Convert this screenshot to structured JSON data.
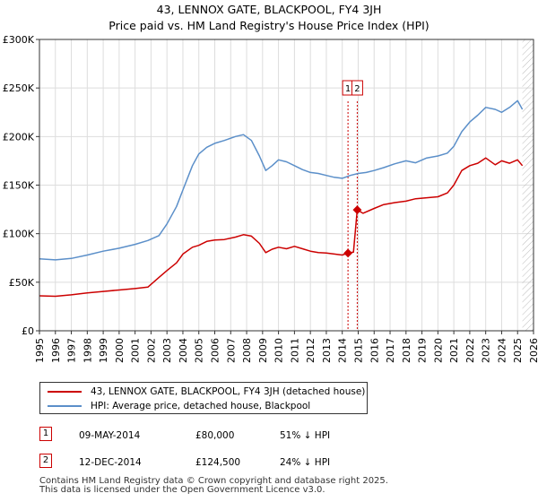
{
  "title_line1": "43, LENNOX GATE, BLACKPOOL, FY4 3JH",
  "title_line2": "Price paid vs. HM Land Registry's House Price Index (HPI)",
  "colors": {
    "property": "#cc0000",
    "hpi": "#5b8fc9",
    "vline": "#cc0000",
    "grid": "#dddddd",
    "future_hatch": "#bbbbbb"
  },
  "chart_data": {
    "type": "line",
    "xlim": [
      1995.0,
      2026.0
    ],
    "ylim": [
      0,
      300000
    ],
    "y_ticks": [
      0,
      50000,
      100000,
      150000,
      200000,
      250000,
      300000
    ],
    "y_tick_labels": [
      "£0",
      "£50K",
      "£100K",
      "£150K",
      "£200K",
      "£250K",
      "£300K"
    ],
    "x_ticks": [
      1995,
      1996,
      1997,
      1998,
      1999,
      2000,
      2001,
      2002,
      2003,
      2004,
      2005,
      2006,
      2007,
      2008,
      2009,
      2010,
      2011,
      2012,
      2013,
      2014,
      2015,
      2016,
      2017,
      2018,
      2019,
      2020,
      2021,
      2022,
      2023,
      2024,
      2025,
      2026
    ],
    "x_tick_labels": [
      "1995",
      "1996",
      "1997",
      "1998",
      "1999",
      "2000",
      "2001",
      "2002",
      "2003",
      "2004",
      "2005",
      "2006",
      "2007",
      "2008",
      "2009",
      "2010",
      "2011",
      "2012",
      "2013",
      "2014",
      "2015",
      "2016",
      "2017",
      "2018",
      "2019",
      "2020",
      "2021",
      "2022",
      "2023",
      "2024",
      "2025",
      "2026"
    ],
    "future_start": 2025.3,
    "series": [
      {
        "name": "43, LENNOX GATE, BLACKPOOL, FY4 3JH (detached house)",
        "color": "#cc0000",
        "x": [
          1995.0,
          1996.0,
          1997.0,
          1998.0,
          1999.0,
          2000.0,
          2001.0,
          2001.8,
          2002.5,
          2003.0,
          2003.6,
          2004.0,
          2004.6,
          2005.0,
          2005.5,
          2006.0,
          2006.6,
          2007.3,
          2007.8,
          2008.3,
          2008.8,
          2009.2,
          2009.6,
          2010.0,
          2010.5,
          2011.0,
          2011.5,
          2012.0,
          2012.5,
          2013.0,
          2013.5,
          2014.0,
          2014.36,
          2014.7,
          2014.94,
          2015.3,
          2016.0,
          2016.6,
          2017.3,
          2018.0,
          2018.6,
          2019.3,
          2020.0,
          2020.6,
          2021.0,
          2021.5,
          2022.0,
          2022.5,
          2023.0,
          2023.6,
          2024.0,
          2024.5,
          2025.0,
          2025.3
        ],
        "values": [
          36000,
          35500,
          37000,
          39000,
          40500,
          42000,
          43500,
          45000,
          55000,
          62000,
          70000,
          79000,
          86000,
          88000,
          92000,
          93500,
          94000,
          96500,
          99000,
          97500,
          90000,
          80500,
          84000,
          86000,
          84500,
          87000,
          84500,
          82000,
          80500,
          80000,
          79000,
          78000,
          80000,
          81000,
          124500,
          121000,
          126000,
          130000,
          132000,
          133500,
          136000,
          137000,
          138000,
          142000,
          150000,
          165000,
          170000,
          172500,
          178000,
          171000,
          175000,
          172500,
          176000,
          170000
        ]
      },
      {
        "name": "HPI: Average price, detached house, Blackpool",
        "color": "#5b8fc9",
        "x": [
          1995.0,
          1996.0,
          1997.0,
          1998.0,
          1999.0,
          2000.0,
          2001.0,
          2001.8,
          2002.5,
          2003.0,
          2003.6,
          2004.0,
          2004.6,
          2005.0,
          2005.5,
          2006.0,
          2006.6,
          2007.3,
          2007.8,
          2008.3,
          2008.8,
          2009.2,
          2009.6,
          2010.0,
          2010.5,
          2011.0,
          2011.5,
          2012.0,
          2012.5,
          2013.0,
          2013.5,
          2014.0,
          2014.5,
          2015.0,
          2015.5,
          2016.0,
          2016.6,
          2017.3,
          2018.0,
          2018.6,
          2019.3,
          2020.0,
          2020.6,
          2021.0,
          2021.5,
          2022.0,
          2022.5,
          2023.0,
          2023.6,
          2024.0,
          2024.5,
          2025.0,
          2025.3
        ],
        "values": [
          74000,
          73000,
          74500,
          78000,
          82000,
          85000,
          89000,
          93000,
          98000,
          110000,
          128000,
          145000,
          170000,
          182000,
          189000,
          193000,
          196000,
          200000,
          202000,
          196000,
          180000,
          165000,
          170000,
          176000,
          174000,
          170000,
          166000,
          163000,
          162000,
          160000,
          158000,
          157000,
          160000,
          162000,
          163000,
          165000,
          168000,
          172000,
          175000,
          173000,
          178000,
          180000,
          183000,
          190000,
          205000,
          215000,
          222000,
          230000,
          228000,
          225000,
          230000,
          237000,
          228000
        ]
      }
    ],
    "annotations": [
      {
        "label": "1",
        "x": 2014.36,
        "value": 80000
      },
      {
        "label": "2",
        "x": 2014.94,
        "value": 124500
      }
    ]
  },
  "legend": {
    "property_label": "43, LENNOX GATE, BLACKPOOL, FY4 3JH (detached house)",
    "hpi_label": "HPI: Average price, detached house, Blackpool"
  },
  "sales": [
    {
      "num": "1",
      "date": "09-MAY-2014",
      "price": "£80,000",
      "hpi": "51% ↓ HPI"
    },
    {
      "num": "2",
      "date": "12-DEC-2014",
      "price": "£124,500",
      "hpi": "24% ↓ HPI"
    }
  ],
  "footer_line1": "Contains HM Land Registry data © Crown copyright and database right 2025.",
  "footer_line2": "This data is licensed under the Open Government Licence v3.0."
}
